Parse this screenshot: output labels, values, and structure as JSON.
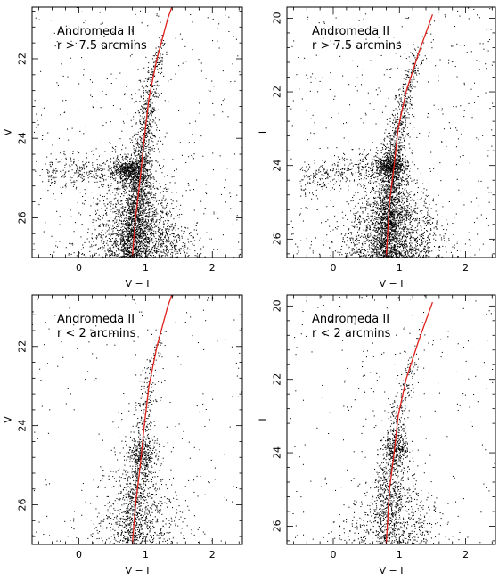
{
  "chart_data": [
    {
      "type": "scatter",
      "panel": "top-left",
      "annotation": [
        "Andromeda II",
        "r > 7.5 arcmins"
      ],
      "xlabel": "V − I",
      "ylabel": "V",
      "xlim": [
        -0.7,
        2.45
      ],
      "ylim": [
        27.0,
        20.7
      ],
      "y_inverted": true,
      "xticks": [
        0,
        1,
        2
      ],
      "yticks": [
        22,
        24,
        26
      ],
      "red_giant_branch_locus": [
        [
          0.8,
          27.0
        ],
        [
          0.85,
          26.0
        ],
        [
          0.92,
          25.0
        ],
        [
          0.98,
          24.0
        ],
        [
          1.05,
          23.0
        ],
        [
          1.17,
          22.0
        ],
        [
          1.33,
          21.0
        ],
        [
          1.5,
          20.2
        ]
      ],
      "red_clump": {
        "x": 0.75,
        "y": 24.8
      },
      "series": [
        {
          "values": []
        }
      ]
    },
    {
      "type": "scatter",
      "panel": "top-right",
      "annotation": [
        "Andromeda II",
        "r > 7.5 arcmins"
      ],
      "xlabel": "V − I",
      "ylabel": "I",
      "xlim": [
        -0.7,
        2.45
      ],
      "ylim": [
        26.5,
        19.7
      ],
      "y_inverted": true,
      "xticks": [
        0,
        1,
        2
      ],
      "yticks": [
        20,
        22,
        24,
        26
      ],
      "red_giant_branch_locus": [
        [
          0.8,
          26.5
        ],
        [
          0.85,
          25.0
        ],
        [
          0.92,
          24.0
        ],
        [
          0.98,
          23.0
        ],
        [
          1.1,
          22.0
        ],
        [
          1.28,
          21.0
        ],
        [
          1.5,
          19.9
        ]
      ],
      "red_clump": {
        "x": 0.85,
        "y": 24.0
      },
      "series": [
        {
          "values": []
        }
      ]
    },
    {
      "type": "scatter",
      "panel": "bottom-left",
      "annotation": [
        "Andromeda II",
        "r < 2 arcmins"
      ],
      "xlabel": "V − I",
      "ylabel": "V",
      "xlim": [
        -0.7,
        2.45
      ],
      "ylim": [
        27.0,
        20.7
      ],
      "y_inverted": true,
      "xticks": [
        0,
        1,
        2
      ],
      "yticks": [
        22,
        24,
        26
      ],
      "red_giant_branch_locus": [
        [
          0.8,
          27.0
        ],
        [
          0.85,
          26.0
        ],
        [
          0.92,
          25.0
        ],
        [
          0.98,
          24.0
        ],
        [
          1.05,
          23.0
        ],
        [
          1.17,
          22.0
        ],
        [
          1.33,
          21.0
        ],
        [
          1.5,
          20.2
        ]
      ],
      "red_clump": {
        "x": 0.95,
        "y": 24.7
      },
      "series": [
        {
          "values": []
        }
      ]
    },
    {
      "type": "scatter",
      "panel": "bottom-right",
      "annotation": [
        "Andromeda II",
        "r < 2 arcmins"
      ],
      "xlabel": "V − I",
      "ylabel": "I",
      "xlim": [
        -0.7,
        2.45
      ],
      "ylim": [
        26.5,
        19.7
      ],
      "y_inverted": true,
      "xticks": [
        0,
        1,
        2
      ],
      "yticks": [
        20,
        22,
        24,
        26
      ],
      "red_giant_branch_locus": [
        [
          0.8,
          26.5
        ],
        [
          0.85,
          25.0
        ],
        [
          0.92,
          24.0
        ],
        [
          0.98,
          23.0
        ],
        [
          1.1,
          22.0
        ],
        [
          1.28,
          21.0
        ],
        [
          1.5,
          19.9
        ]
      ],
      "red_clump": {
        "x": 0.95,
        "y": 23.9
      },
      "series": [
        {
          "values": []
        }
      ]
    }
  ],
  "colors": {
    "locus_line": "#e0201b",
    "points": "#000000",
    "frame": "#000000"
  }
}
